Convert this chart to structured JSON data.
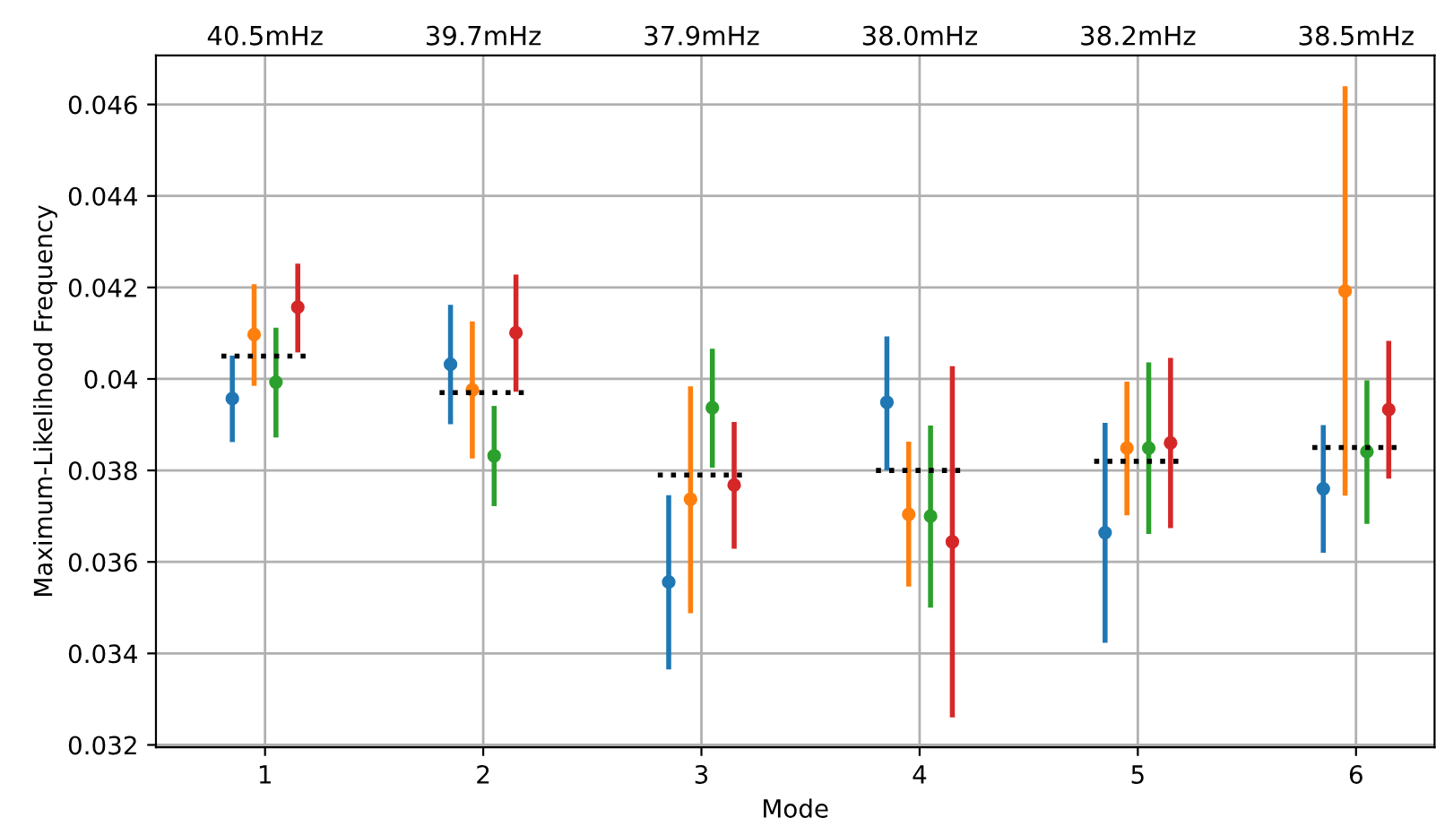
{
  "chart_data": {
    "type": "scatter",
    "xlabel": "Mode",
    "ylabel": "Maximum-Likelihood Frequency",
    "xlim": [
      0.5,
      6.36
    ],
    "xticks": [
      1,
      2,
      3,
      4,
      5,
      6
    ],
    "annotations": [
      "40.5mHz",
      "39.7mHz",
      "37.9mHz",
      "38.0mHz",
      "38.2mHz",
      "38.5mHz"
    ],
    "ylim": [
      0.03195,
      0.04707
    ],
    "yticks": [
      0.032,
      0.034,
      0.036,
      0.038,
      0.04,
      0.042,
      0.044,
      0.046
    ],
    "grid": true,
    "legend": false,
    "marker": "circle",
    "series": [
      {
        "color": "#1f77b4",
        "x": [
          0.85,
          1.85,
          2.85,
          3.85,
          4.85,
          5.85
        ],
        "values": [
          0.03957,
          0.04032,
          0.03556,
          0.03949,
          0.03664,
          0.0376
        ],
        "errors": [
          [
            0.03862,
            0.04051
          ],
          [
            0.03901,
            0.04162
          ],
          [
            0.03365,
            0.03746
          ],
          [
            0.038,
            0.04093
          ],
          [
            0.03423,
            0.03904
          ],
          [
            0.0362,
            0.03899
          ]
        ]
      },
      {
        "color": "#ff7f0e",
        "x": [
          0.95,
          1.95,
          2.95,
          3.95,
          4.95,
          5.95
        ],
        "values": [
          0.04097,
          0.03976,
          0.03737,
          0.03704,
          0.03849,
          0.04192
        ],
        "errors": [
          [
            0.03985,
            0.04207
          ],
          [
            0.03826,
            0.04126
          ],
          [
            0.03488,
            0.03984
          ],
          [
            0.03546,
            0.03863
          ],
          [
            0.03702,
            0.03994
          ],
          [
            0.03745,
            0.0464
          ]
        ]
      },
      {
        "color": "#2ca02c",
        "x": [
          1.05,
          2.05,
          3.05,
          4.05,
          5.05,
          6.05
        ],
        "values": [
          0.03993,
          0.03832,
          0.03937,
          0.037,
          0.03849,
          0.03841
        ],
        "errors": [
          [
            0.03872,
            0.04112
          ],
          [
            0.03722,
            0.03941
          ],
          [
            0.03806,
            0.04066
          ],
          [
            0.035,
            0.03898
          ],
          [
            0.03661,
            0.04036
          ],
          [
            0.03683,
            0.03997
          ]
        ]
      },
      {
        "color": "#d62728",
        "x": [
          1.15,
          2.15,
          3.15,
          4.15,
          5.15,
          6.15
        ],
        "values": [
          0.04157,
          0.04101,
          0.03768,
          0.03644,
          0.0386,
          0.03933
        ],
        "errors": [
          [
            0.04058,
            0.04252
          ],
          [
            0.03972,
            0.04228
          ],
          [
            0.03629,
            0.03906
          ],
          [
            0.0326,
            0.04028
          ],
          [
            0.03674,
            0.04046
          ],
          [
            0.03782,
            0.04083
          ]
        ]
      },
      {
        "type": "line",
        "color": "#000000",
        "line_style": "dotted",
        "marker": "none",
        "x": [
          0.8,
          1.2,
          1.5,
          1.8,
          2.2,
          2.5,
          2.8,
          3.2,
          3.5,
          3.8,
          4.2,
          4.5,
          4.8,
          5.2,
          5.5,
          5.8,
          6.2
        ],
        "values": [
          0.0405,
          0.0405,
          null,
          0.0397,
          0.0397,
          null,
          0.0379,
          0.0379,
          null,
          0.038,
          0.038,
          null,
          0.0382,
          0.0382,
          null,
          0.0385,
          0.0385
        ]
      }
    ]
  }
}
